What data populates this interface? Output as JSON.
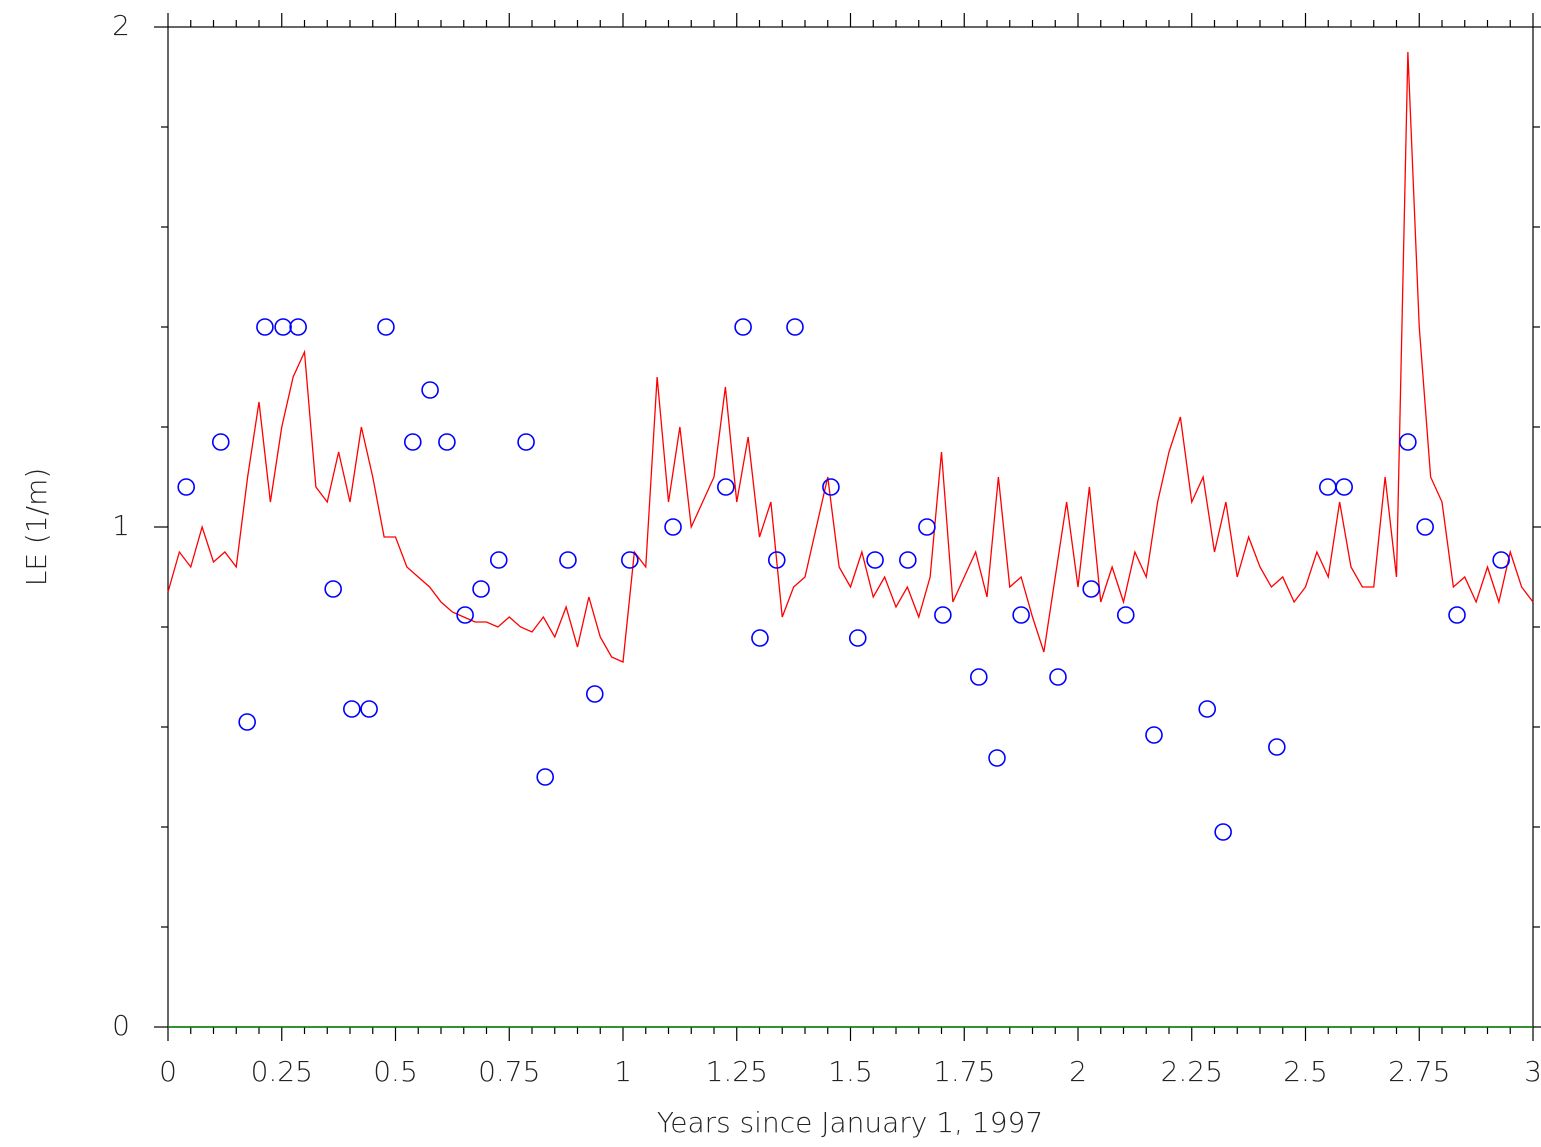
{
  "chart_data": {
    "type": "line",
    "xlabel": "Years since January 1, 1997",
    "ylabel": "LE (1/m)",
    "xlim": [
      0,
      3
    ],
    "ylim": [
      0,
      2
    ],
    "xticks": [
      0,
      0.25,
      0.5,
      0.75,
      1,
      1.25,
      1.5,
      1.75,
      2,
      2.25,
      2.5,
      2.75,
      3
    ],
    "yticks": [
      0,
      1,
      2
    ],
    "xminorticks": [
      0.05,
      0.1,
      0.15,
      0.2,
      0.3,
      0.35,
      0.4,
      0.45,
      0.55,
      0.6,
      0.65,
      0.7,
      0.8,
      0.85,
      0.9,
      0.95,
      1.05,
      1.1,
      1.15,
      1.2,
      1.3,
      1.35,
      1.4,
      1.45,
      1.55,
      1.6,
      1.65,
      1.7,
      1.8,
      1.85,
      1.9,
      1.95,
      2.05,
      2.1,
      2.15,
      2.2,
      2.3,
      2.35,
      2.4,
      2.45,
      2.55,
      2.6,
      2.65,
      2.7,
      2.8,
      2.85,
      2.9,
      2.95
    ],
    "yminorticks": [
      0.2,
      0.4,
      0.6,
      0.8,
      1.2,
      1.4,
      1.6,
      1.8
    ],
    "baseline_color": "#008000",
    "series": [
      {
        "type": "line",
        "color": "#ff0000",
        "x": [
          0,
          0.025,
          0.05,
          0.075,
          0.1,
          0.125,
          0.15,
          0.175,
          0.2,
          0.225,
          0.25,
          0.275,
          0.3,
          0.325,
          0.35,
          0.375,
          0.4,
          0.425,
          0.45,
          0.475,
          0.5,
          0.525,
          0.55,
          0.575,
          0.6,
          0.625,
          0.65,
          0.675,
          0.7,
          0.725,
          0.75,
          0.775,
          0.8,
          0.825,
          0.85,
          0.875,
          0.9,
          0.925,
          0.95,
          0.975,
          1,
          1.025,
          1.05,
          1.075,
          1.1,
          1.125,
          1.15,
          1.175,
          1.2,
          1.225,
          1.25,
          1.275,
          1.3,
          1.325,
          1.35,
          1.375,
          1.4,
          1.425,
          1.45,
          1.475,
          1.5,
          1.525,
          1.55,
          1.575,
          1.6,
          1.625,
          1.65,
          1.675,
          1.7,
          1.725,
          1.75,
          1.775,
          1.8,
          1.825,
          1.85,
          1.875,
          1.9,
          1.925,
          1.95,
          1.975,
          2,
          2.025,
          2.05,
          2.075,
          2.1,
          2.125,
          2.15,
          2.175,
          2.2,
          2.225,
          2.25,
          2.275,
          2.3,
          2.325,
          2.35,
          2.375,
          2.4,
          2.425,
          2.45,
          2.475,
          2.5,
          2.525,
          2.55,
          2.575,
          2.6,
          2.625,
          2.65,
          2.675,
          2.7,
          2.725,
          2.75,
          2.775,
          2.8,
          2.825,
          2.85,
          2.875,
          2.9,
          2.925,
          2.95,
          2.975,
          3
        ],
        "values": [
          0.87,
          0.95,
          0.92,
          1.0,
          0.93,
          0.95,
          0.92,
          1.1,
          1.25,
          1.05,
          1.2,
          1.3,
          1.35,
          1.08,
          1.05,
          1.15,
          1.05,
          1.2,
          1.1,
          0.98,
          0.98,
          0.92,
          0.9,
          0.88,
          0.85,
          0.83,
          0.82,
          0.81,
          0.81,
          0.8,
          0.82,
          0.8,
          0.79,
          0.82,
          0.78,
          0.84,
          0.76,
          0.86,
          0.78,
          0.74,
          0.73,
          0.95,
          0.92,
          1.3,
          1.05,
          1.2,
          1.0,
          1.05,
          1.1,
          1.28,
          1.05,
          1.18,
          0.98,
          1.05,
          0.82,
          0.88,
          0.9,
          1.0,
          1.1,
          0.92,
          0.88,
          0.95,
          0.86,
          0.9,
          0.84,
          0.88,
          0.82,
          0.9,
          1.15,
          0.85,
          0.9,
          0.95,
          0.86,
          1.1,
          0.88,
          0.9,
          0.82,
          0.75,
          0.9,
          1.05,
          0.88,
          1.08,
          0.85,
          0.92,
          0.85,
          0.95,
          0.9,
          1.05,
          1.15,
          1.22,
          1.05,
          1.1,
          0.95,
          1.05,
          0.9,
          0.98,
          0.92,
          0.88,
          0.9,
          0.85,
          0.88,
          0.95,
          0.9,
          1.05,
          0.92,
          0.88,
          0.88,
          1.1,
          0.9,
          1.95,
          1.4,
          1.1,
          1.05,
          0.88,
          0.9,
          0.85,
          0.92,
          0.85,
          0.95,
          0.88,
          0.85
        ]
      },
      {
        "type": "scatter",
        "color": "#0000ff",
        "x": [
          0.04,
          0.116,
          0.174,
          0.213,
          0.253,
          0.286,
          0.363,
          0.404,
          0.442,
          0.479,
          0.538,
          0.576,
          0.613,
          0.653,
          0.688,
          0.727,
          0.787,
          0.829,
          0.879,
          0.938,
          1.015,
          1.11,
          1.226,
          1.264,
          1.301,
          1.338,
          1.378,
          1.457,
          1.516,
          1.554,
          1.626,
          1.668,
          1.703,
          1.782,
          1.822,
          1.875,
          1.956,
          2.029,
          2.105,
          2.167,
          2.284,
          2.319,
          2.437,
          2.549,
          2.585,
          2.725,
          2.763,
          2.833,
          2.93
        ],
        "values": [
          1.08,
          1.17,
          0.61,
          1.4,
          1.4,
          1.4,
          0.876,
          0.636,
          0.636,
          1.4,
          1.17,
          1.274,
          1.17,
          0.824,
          0.876,
          0.934,
          1.17,
          0.5,
          0.934,
          0.666,
          0.934,
          1.0,
          1.08,
          1.4,
          0.778,
          0.934,
          1.4,
          1.08,
          0.778,
          0.934,
          0.934,
          1.0,
          0.824,
          0.7,
          0.538,
          0.824,
          0.7,
          0.876,
          0.824,
          0.584,
          0.636,
          0.39,
          0.56,
          1.08,
          1.08,
          1.17,
          1.0,
          0.824,
          0.934
        ]
      }
    ]
  }
}
